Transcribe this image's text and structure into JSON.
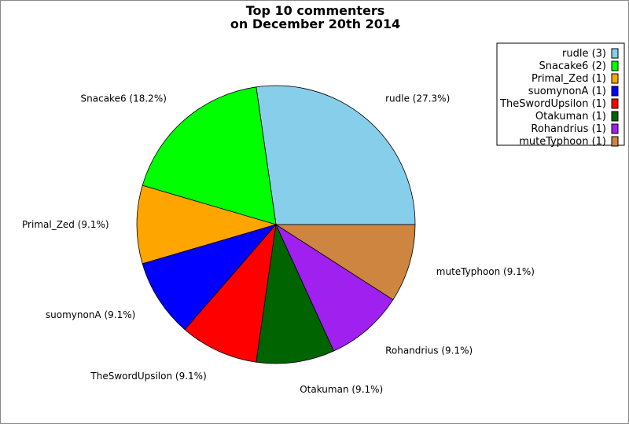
{
  "chart_data": {
    "type": "pie",
    "title_lines": [
      "Top 10 commenters",
      "on December 20th 2014"
    ],
    "slices": [
      {
        "name": "rudle",
        "value": 3,
        "percent_label": "rudle (27.3%)",
        "legend_label": "rudle (3)",
        "color": "#87CEEB"
      },
      {
        "name": "Snacake6",
        "value": 2,
        "percent_label": "Snacake6 (18.2%)",
        "legend_label": "Snacake6 (2)",
        "color": "#00FF00"
      },
      {
        "name": "Primal_Zed",
        "value": 1,
        "percent_label": "Primal_Zed (9.1%)",
        "legend_label": "Primal_Zed (1)",
        "color": "#FFA500"
      },
      {
        "name": "suomynonA",
        "value": 1,
        "percent_label": "suomynonA (9.1%)",
        "legend_label": "suomynonA (1)",
        "color": "#0000FF"
      },
      {
        "name": "TheSwordUpsilon",
        "value": 1,
        "percent_label": "TheSwordUpsilon (9.1%)",
        "legend_label": "TheSwordUpsilon (1)",
        "color": "#FF0000"
      },
      {
        "name": "Otakuman",
        "value": 1,
        "percent_label": "Otakuman (9.1%)",
        "legend_label": "Otakuman (1)",
        "color": "#006400"
      },
      {
        "name": "Rohandrius",
        "value": 1,
        "percent_label": "Rohandrius (9.1%)",
        "legend_label": "Rohandrius (1)",
        "color": "#A020F0"
      },
      {
        "name": "muteTyphoon",
        "value": 1,
        "percent_label": "muteTyphoon (9.1%)",
        "legend_label": "muteTyphoon (1)",
        "color": "#CD853F"
      }
    ],
    "start_angle_deg": 0,
    "direction": "counterclockwise",
    "legend_position": "top-right"
  }
}
